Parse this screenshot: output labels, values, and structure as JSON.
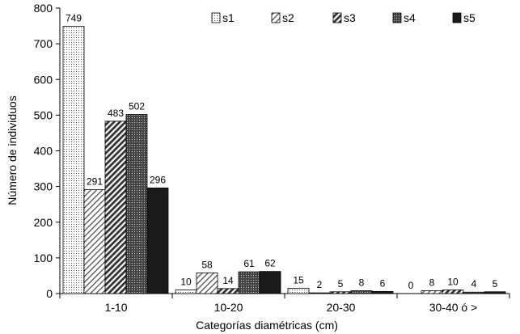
{
  "chart_data": {
    "type": "bar",
    "xlabel": "Categorías diamétricas (cm)",
    "ylabel": "Número de individuos",
    "categories": [
      "1-10",
      "10-20",
      "20-30",
      "30-40 ó >"
    ],
    "ylim": [
      0,
      800
    ],
    "yticks": [
      "0",
      "100",
      "200",
      "300",
      "400",
      "500",
      "600",
      "700",
      "800"
    ],
    "legend_position": "top-right",
    "grid": false,
    "series": [
      {
        "name": "s1",
        "values": [
          749,
          10,
          15,
          0
        ],
        "labels": [
          "749",
          "10",
          "15",
          "0"
        ],
        "pattern": "dots"
      },
      {
        "name": "s2",
        "values": [
          291,
          58,
          2,
          8
        ],
        "labels": [
          "291",
          "58",
          "2",
          "8"
        ],
        "pattern": "fine-diag"
      },
      {
        "name": "s3",
        "values": [
          483,
          14,
          5,
          10
        ],
        "labels": [
          "483",
          "14",
          "5",
          "10"
        ],
        "pattern": "bold-diag"
      },
      {
        "name": "s4",
        "values": [
          502,
          61,
          8,
          4
        ],
        "labels": [
          "502",
          "61",
          "8",
          "4"
        ],
        "pattern": "grid-dark"
      },
      {
        "name": "s5",
        "values": [
          296,
          62,
          6,
          5
        ],
        "labels": [
          "296",
          "62",
          "6",
          "5"
        ],
        "pattern": "solid"
      }
    ]
  }
}
